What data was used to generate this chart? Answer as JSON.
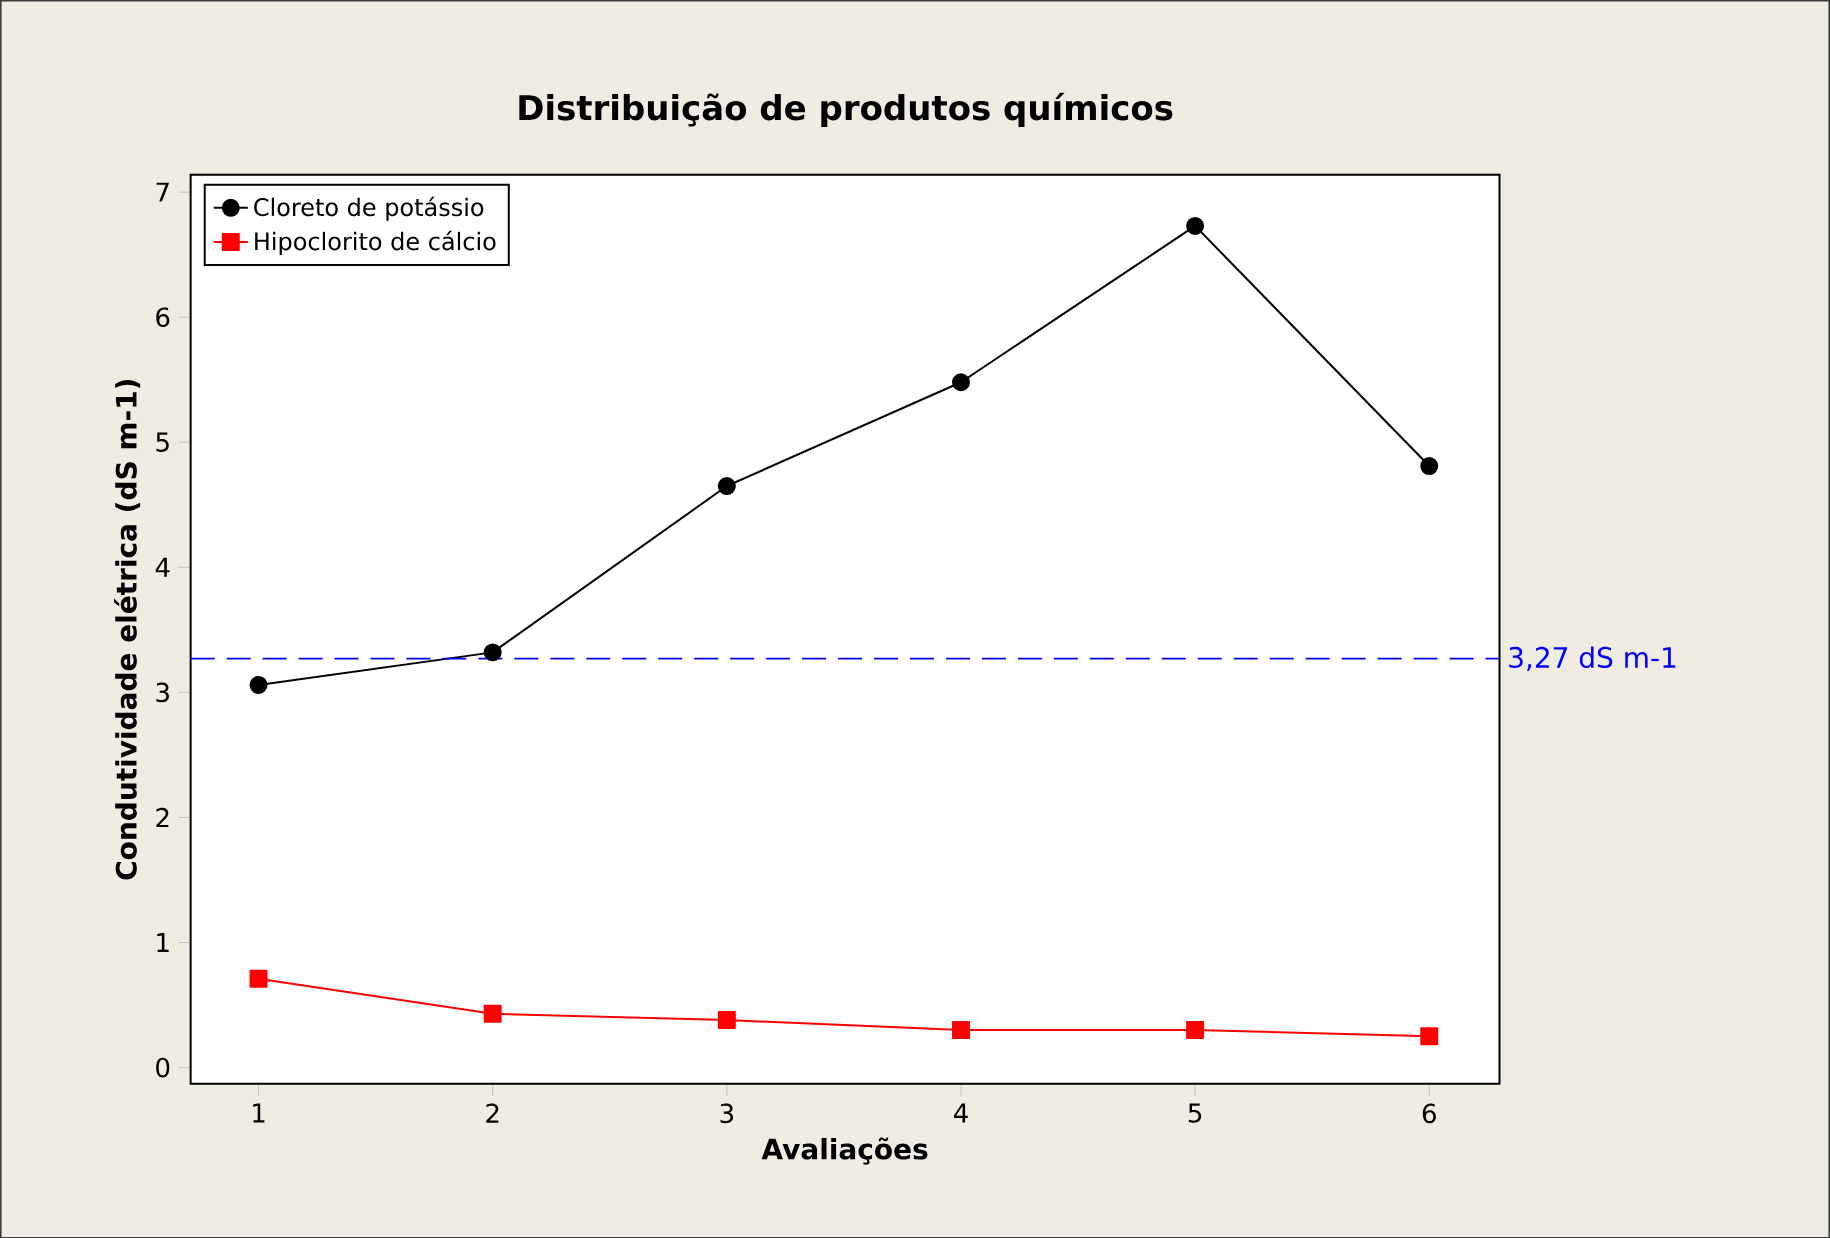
{
  "chart_data": {
    "type": "line",
    "title": "Distribuição de produtos químicos",
    "xlabel": "Avaliações",
    "ylabel": "Condutividade elétrica (dS m-1)",
    "x": [
      1,
      2,
      3,
      4,
      5,
      6
    ],
    "series": [
      {
        "name": "Cloreto de potássio",
        "color": "#000000",
        "marker": "circle",
        "values": [
          3.06,
          3.32,
          4.65,
          5.48,
          6.73,
          4.81
        ]
      },
      {
        "name": "Hipoclorito de cálcio",
        "color": "#ff0000",
        "marker": "square",
        "values": [
          0.71,
          0.43,
          0.38,
          0.3,
          0.3,
          0.25
        ]
      }
    ],
    "xlim": [
      0.71,
      6.3
    ],
    "ylim": [
      -0.13,
      7.14
    ],
    "xticks": [
      1,
      2,
      3,
      4,
      5,
      6
    ],
    "yticks": [
      0,
      1,
      2,
      3,
      4,
      5,
      6,
      7
    ],
    "ref_lines": [
      {
        "axis": "y",
        "value": 3.27,
        "label": "3,27 dS m-1",
        "color": "#0000ff",
        "line_style": "dashed"
      }
    ],
    "legend": "top left",
    "grid": false
  }
}
